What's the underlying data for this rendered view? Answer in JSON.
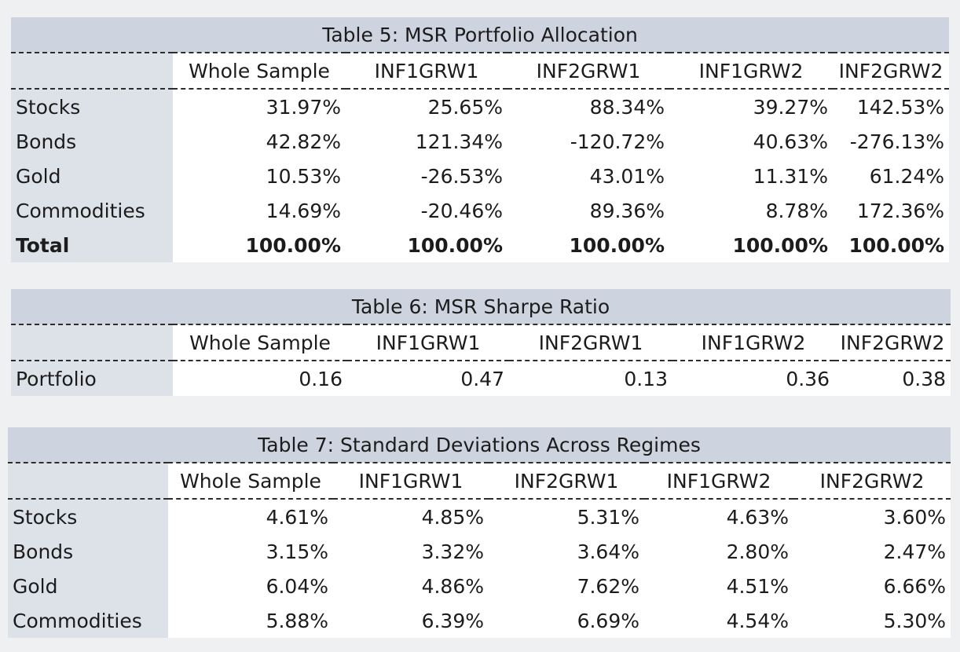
{
  "table5": {
    "title": "Table 5: MSR Portfolio Allocation",
    "columns": [
      "Whole Sample",
      "INF1GRW1",
      "INF2GRW1",
      "INF1GRW2",
      "INF2GRW2"
    ],
    "rows": [
      {
        "label": "Stocks",
        "values": [
          "31.97%",
          "25.65%",
          "88.34%",
          "39.27%",
          "142.53%"
        ]
      },
      {
        "label": "Bonds",
        "values": [
          "42.82%",
          "121.34%",
          "-120.72%",
          "40.63%",
          "-276.13%"
        ]
      },
      {
        "label": "Gold",
        "values": [
          "10.53%",
          "-26.53%",
          "43.01%",
          "11.31%",
          "61.24%"
        ]
      },
      {
        "label": "Commodities",
        "values": [
          "14.69%",
          "-20.46%",
          "89.36%",
          "8.78%",
          "172.36%"
        ]
      },
      {
        "label": "Total",
        "values": [
          "100.00%",
          "100.00%",
          "100.00%",
          "100.00%",
          "100.00%"
        ]
      }
    ]
  },
  "table6": {
    "title": "Table 6: MSR Sharpe Ratio",
    "columns": [
      "Whole Sample",
      "INF1GRW1",
      "INF2GRW1",
      "INF1GRW2",
      "INF2GRW2"
    ],
    "rows": [
      {
        "label": "Portfolio",
        "values": [
          "0.16",
          "0.47",
          "0.13",
          "0.36",
          "0.38"
        ]
      }
    ]
  },
  "table7": {
    "title": "Table 7: Standard Deviations Across Regimes",
    "columns": [
      "Whole Sample",
      "INF1GRW1",
      "INF2GRW1",
      "INF1GRW2",
      "INF2GRW2"
    ],
    "rows": [
      {
        "label": "Stocks",
        "values": [
          "4.61%",
          "4.85%",
          "5.31%",
          "4.63%",
          "3.60%"
        ]
      },
      {
        "label": "Bonds",
        "values": [
          "3.15%",
          "3.32%",
          "3.64%",
          "2.80%",
          "2.47%"
        ]
      },
      {
        "label": "Gold",
        "values": [
          "6.04%",
          "4.86%",
          "7.62%",
          "4.51%",
          "6.66%"
        ]
      },
      {
        "label": "Commodities",
        "values": [
          "5.88%",
          "6.39%",
          "6.69%",
          "4.54%",
          "5.30%"
        ]
      }
    ]
  }
}
